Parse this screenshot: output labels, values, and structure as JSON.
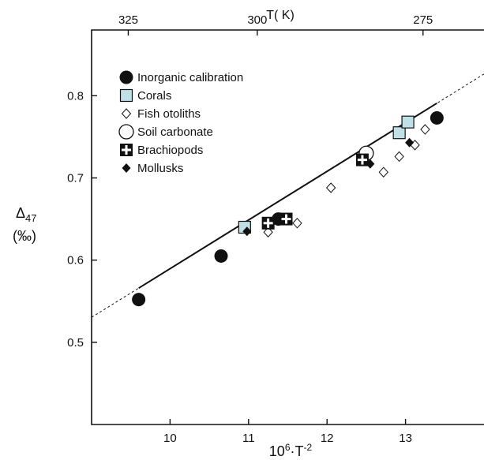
{
  "chart_data": {
    "type": "scatter",
    "x_axis": {
      "label_base": "10",
      "label_exp": "6",
      "label_rest": "·T",
      "label_exp2": "-2",
      "ticks": [
        "10",
        "11",
        "12",
        "13"
      ],
      "range": [
        9.0,
        14.0
      ]
    },
    "top_axis": {
      "label": "T( K)",
      "ticks": [
        "325",
        "300",
        "275"
      ]
    },
    "y_axis": {
      "label_main": "Δ",
      "label_sub": "47",
      "label_unit": "(‰)",
      "ticks": [
        "0.5",
        "0.6",
        "0.7",
        "0.8"
      ],
      "range": [
        0.4,
        0.88
      ]
    },
    "regression_line": {
      "slope": 0.0592,
      "intercept": -0.0024,
      "solid_range": [
        9.6,
        13.4
      ]
    },
    "grid": false,
    "legend_position": "top-left",
    "series": [
      {
        "name": "Inorganic calibration",
        "marker": "filled-circle",
        "points": [
          [
            9.6,
            0.552
          ],
          [
            10.65,
            0.605
          ],
          [
            11.38,
            0.65
          ],
          [
            13.4,
            0.773
          ]
        ]
      },
      {
        "name": "Corals",
        "marker": "light-blue-square",
        "points": [
          [
            10.95,
            0.64
          ],
          [
            12.92,
            0.755
          ],
          [
            13.03,
            0.768
          ]
        ]
      },
      {
        "name": "Fish otoliths",
        "marker": "open-diamond",
        "points": [
          [
            11.25,
            0.634
          ],
          [
            11.62,
            0.645
          ],
          [
            12.05,
            0.688
          ],
          [
            12.72,
            0.707
          ],
          [
            12.92,
            0.726
          ],
          [
            13.12,
            0.74
          ],
          [
            13.25,
            0.759
          ]
        ]
      },
      {
        "name": "Soil carbonate",
        "marker": "open-circle",
        "points": [
          [
            12.5,
            0.73
          ]
        ]
      },
      {
        "name": "Brachiopods",
        "marker": "cross-square",
        "points": [
          [
            11.25,
            0.645
          ],
          [
            11.48,
            0.65
          ],
          [
            12.45,
            0.722
          ]
        ]
      },
      {
        "name": "Mollusks",
        "marker": "filled-diamond",
        "points": [
          [
            10.98,
            0.635
          ],
          [
            11.35,
            0.648
          ],
          [
            12.55,
            0.717
          ],
          [
            13.05,
            0.743
          ]
        ]
      }
    ]
  },
  "colors": {
    "axis": "#111111",
    "coral_fill": "#bfe0e6",
    "marker": "#111111"
  }
}
